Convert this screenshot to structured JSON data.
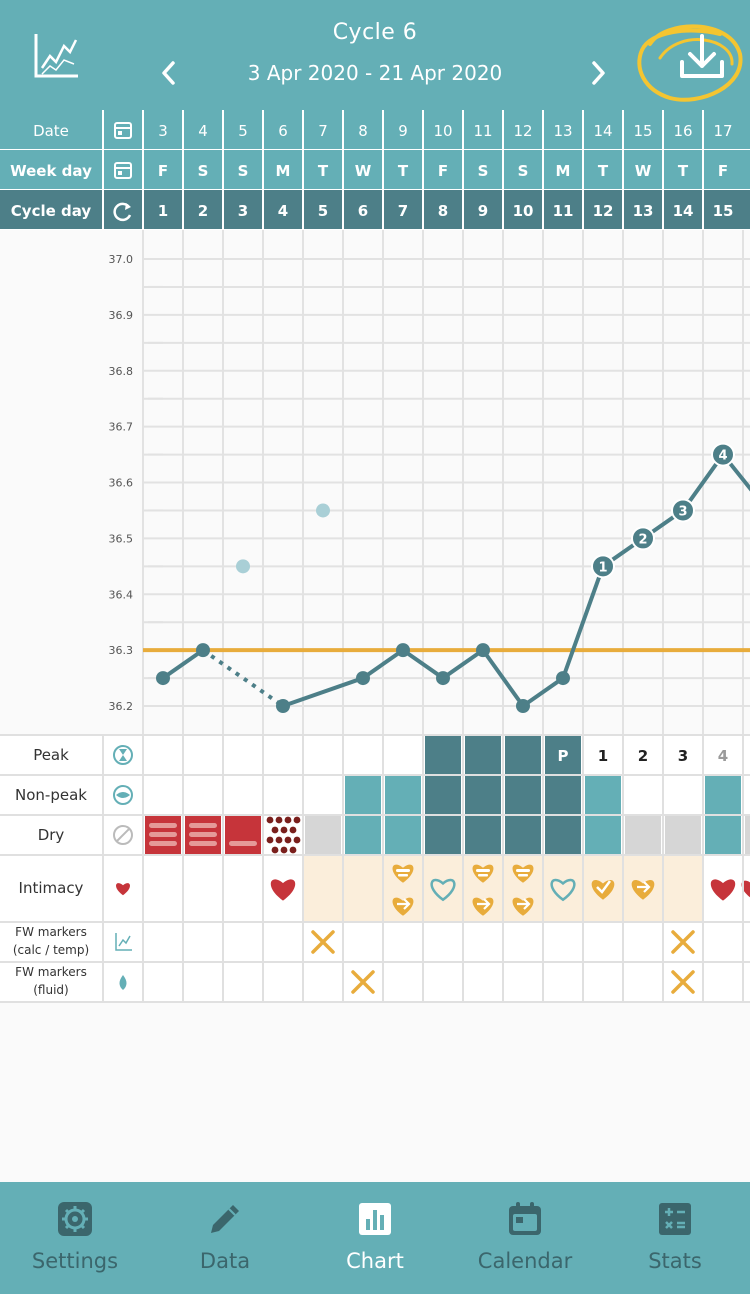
{
  "header": {
    "title": "Cycle  6",
    "date_range": "3 Apr 2020 - 21 Apr 2020",
    "chart_icon": "chart-icon",
    "prev_icon": "chevron-left-icon",
    "next_icon": "chevron-right-icon",
    "download_icon": "download-icon"
  },
  "rows": {
    "date_label": "Date",
    "weekday_label": "Week day",
    "cycleday_label": "Cycle day",
    "peak_label": "Peak",
    "nonpeak_label": "Non-peak",
    "dry_label": "Dry",
    "intimacy_label": "Intimacy",
    "fw_calc_label_1": "FW markers",
    "fw_calc_label_2": "(calc / temp)",
    "fw_fluid_label_1": "FW markers",
    "fw_fluid_label_2": "(fluid)"
  },
  "days": {
    "dates": [
      "3",
      "4",
      "5",
      "6",
      "7",
      "8",
      "9",
      "10",
      "11",
      "12",
      "13",
      "14",
      "15",
      "16",
      "17"
    ],
    "weekdays": [
      "F",
      "S",
      "S",
      "M",
      "T",
      "W",
      "T",
      "F",
      "S",
      "S",
      "M",
      "T",
      "W",
      "T",
      "F"
    ],
    "cycle_days": [
      "1",
      "2",
      "3",
      "4",
      "5",
      "6",
      "7",
      "8",
      "9",
      "10",
      "11",
      "12",
      "13",
      "14",
      "15"
    ]
  },
  "chart_data": {
    "type": "line",
    "x": [
      1,
      2,
      3,
      4,
      5,
      6,
      7,
      8,
      9,
      10,
      11,
      12,
      13,
      14,
      15
    ],
    "y_ticks": [
      "37.0",
      "36.9",
      "36.8",
      "36.7",
      "36.6",
      "36.5",
      "36.4",
      "36.3",
      "36.2"
    ],
    "ylim": [
      36.2,
      37.0
    ],
    "series": [
      {
        "values": [
          36.25,
          36.3,
          null,
          36.2,
          null,
          36.25,
          36.3,
          36.25,
          36.3,
          36.2,
          36.25,
          36.45,
          36.5,
          36.55,
          36.65
        ]
      }
    ],
    "dashed_segment": [
      2,
      4
    ],
    "excluded_points": [
      {
        "x": 3,
        "y": 36.45
      },
      {
        "x": 5,
        "y": 36.55
      }
    ],
    "point_labels": [
      {
        "x": 12,
        "label": "1"
      },
      {
        "x": 13,
        "label": "2"
      },
      {
        "x": 14,
        "label": "3"
      },
      {
        "x": 15,
        "label": "4"
      }
    ],
    "coverline": 36.3,
    "colors": {
      "line": "#4d7f88",
      "excluded": "#a9cfd6",
      "coverline": "#e8ac3c"
    }
  },
  "peak_row": {
    "peak_days": [
      8,
      9,
      10,
      11
    ],
    "p_day": 11,
    "p_label": "P",
    "counts": [
      "1",
      "2",
      "3",
      "4"
    ]
  },
  "nonpeak_row": {
    "days": [
      6,
      7,
      12,
      15
    ]
  },
  "dry_row": {
    "menstrual_heavy": [
      1,
      2
    ],
    "menstrual_light": [
      3
    ],
    "spotting": [
      4
    ],
    "dry_days": [
      5,
      13,
      14
    ]
  },
  "intimacy_row": {
    "shade_range": [
      5,
      14
    ],
    "icons": [
      {
        "day": 4,
        "icon": "heart-solid-icon"
      },
      {
        "day": 7,
        "icon": "heart-stack-icon"
      },
      {
        "day": 8,
        "icon": "heart-outline-icon"
      },
      {
        "day": 9,
        "icon": "heart-stack-icon"
      },
      {
        "day": 10,
        "icon": "heart-stack-icon"
      },
      {
        "day": 11,
        "icon": "heart-outline-icon"
      },
      {
        "day": 12,
        "icon": "heart-check-icon"
      },
      {
        "day": 13,
        "icon": "heart-arrow-icon"
      },
      {
        "day": 15,
        "icon": "heart-solid-icon"
      }
    ]
  },
  "fw_calc_row": {
    "days": [
      5,
      14
    ]
  },
  "fw_fluid_row": {
    "days": [
      6,
      14
    ]
  },
  "colors": {
    "accent": "#64afb6",
    "dark_teal": "#4d7f88",
    "heavy_red": "#c6343a",
    "gold": "#e8ac3c",
    "gray": "#d6d6d6"
  },
  "nav": {
    "items": [
      {
        "label": "Settings",
        "icon": "gear-icon",
        "active": false
      },
      {
        "label": "Data",
        "icon": "pencil-icon",
        "active": false
      },
      {
        "label": "Chart",
        "icon": "bar-chart-icon",
        "active": true
      },
      {
        "label": "Calendar",
        "icon": "calendar-icon",
        "active": false
      },
      {
        "label": "Stats",
        "icon": "calculator-icon",
        "active": false
      }
    ]
  }
}
